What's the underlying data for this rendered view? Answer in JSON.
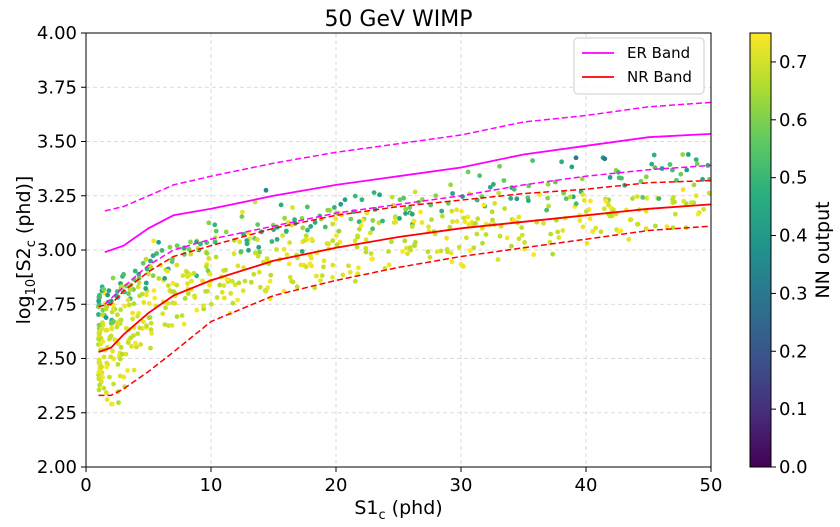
{
  "chart_data": {
    "type": "scatter",
    "title": "50 GeV WIMP",
    "xlabel": "S1",
    "xlabel_sub": "c",
    "xlabel_unit": " (phd)",
    "ylabel_prefix": "log",
    "ylabel_base": "10",
    "ylabel_var": "[S2",
    "ylabel_sub": "c",
    "ylabel_unit": " (phd)]",
    "xlim": [
      0,
      50
    ],
    "ylim": [
      2.0,
      4.0
    ],
    "xticks": [
      0,
      10,
      20,
      30,
      40,
      50
    ],
    "xtick_labels": [
      "0",
      "10",
      "20",
      "30",
      "40",
      "50"
    ],
    "yticks": [
      2.0,
      2.25,
      2.5,
      2.75,
      3.0,
      3.25,
      3.5,
      3.75,
      4.0
    ],
    "ytick_labels": [
      "2.00",
      "2.25",
      "2.50",
      "2.75",
      "3.00",
      "3.25",
      "3.50",
      "3.75",
      "4.00"
    ],
    "grid": true,
    "legend_position": "top-right",
    "colorbar": {
      "label": "NN output",
      "min": 0.0,
      "max": 0.75,
      "ticks": [
        0.0,
        0.1,
        0.2,
        0.3,
        0.4,
        0.5,
        0.6,
        0.7
      ],
      "tick_labels": [
        "0.0",
        "0.1",
        "0.2",
        "0.3",
        "0.4",
        "0.5",
        "0.6",
        "0.7"
      ],
      "colormap": "viridis"
    },
    "bands": [
      {
        "name": "ER Band",
        "color": "#ff00ff",
        "median": [
          [
            1.5,
            2.99
          ],
          [
            3,
            3.02
          ],
          [
            5,
            3.1
          ],
          [
            7,
            3.16
          ],
          [
            10,
            3.19
          ],
          [
            15,
            3.25
          ],
          [
            20,
            3.3
          ],
          [
            25,
            3.34
          ],
          [
            30,
            3.38
          ],
          [
            35,
            3.44
          ],
          [
            40,
            3.48
          ],
          [
            45,
            3.52
          ],
          [
            50,
            3.535
          ]
        ],
        "upper": [
          [
            1.5,
            3.18
          ],
          [
            3,
            3.2
          ],
          [
            5,
            3.25
          ],
          [
            7,
            3.3
          ],
          [
            10,
            3.34
          ],
          [
            15,
            3.4
          ],
          [
            20,
            3.45
          ],
          [
            25,
            3.49
          ],
          [
            30,
            3.53
          ],
          [
            35,
            3.59
          ],
          [
            40,
            3.62
          ],
          [
            45,
            3.66
          ],
          [
            50,
            3.68
          ]
        ],
        "lower": [
          [
            1.5,
            2.75
          ],
          [
            3,
            2.83
          ],
          [
            5,
            2.93
          ],
          [
            7,
            3.0
          ],
          [
            10,
            3.05
          ],
          [
            15,
            3.11
          ],
          [
            20,
            3.17
          ],
          [
            25,
            3.21
          ],
          [
            30,
            3.25
          ],
          [
            35,
            3.3
          ],
          [
            40,
            3.34
          ],
          [
            45,
            3.37
          ],
          [
            50,
            3.39
          ]
        ]
      },
      {
        "name": "NR Band",
        "color": "#ff0000",
        "median": [
          [
            1,
            2.53
          ],
          [
            2,
            2.55
          ],
          [
            3,
            2.61
          ],
          [
            5,
            2.71
          ],
          [
            7,
            2.79
          ],
          [
            10,
            2.86
          ],
          [
            15,
            2.95
          ],
          [
            20,
            3.01
          ],
          [
            25,
            3.06
          ],
          [
            30,
            3.1
          ],
          [
            35,
            3.13
          ],
          [
            40,
            3.16
          ],
          [
            45,
            3.19
          ],
          [
            50,
            3.21
          ]
        ],
        "upper": [
          [
            1,
            2.74
          ],
          [
            2,
            2.75
          ],
          [
            3,
            2.81
          ],
          [
            5,
            2.9
          ],
          [
            7,
            2.97
          ],
          [
            10,
            3.02
          ],
          [
            15,
            3.1
          ],
          [
            20,
            3.16
          ],
          [
            25,
            3.2
          ],
          [
            30,
            3.23
          ],
          [
            35,
            3.26
          ],
          [
            40,
            3.28
          ],
          [
            45,
            3.31
          ],
          [
            50,
            3.32
          ]
        ],
        "lower": [
          [
            1,
            2.33
          ],
          [
            2,
            2.33
          ],
          [
            3,
            2.36
          ],
          [
            5,
            2.44
          ],
          [
            7,
            2.53
          ],
          [
            10,
            2.67
          ],
          [
            15,
            2.79
          ],
          [
            20,
            2.86
          ],
          [
            25,
            2.92
          ],
          [
            30,
            2.97
          ],
          [
            35,
            3.01
          ],
          [
            40,
            3.05
          ],
          [
            45,
            3.09
          ],
          [
            50,
            3.11
          ]
        ]
      }
    ],
    "scatter": {
      "n_points": 700,
      "x_range": [
        1.0,
        50.0
      ],
      "y_range": [
        2.29,
        3.44
      ],
      "marker_size": 4,
      "description": "signal-like events concentrated around NR band (yellow, NN ~0.75) with a minority around ER band (green/teal, NN ~0.4-0.6)"
    }
  }
}
